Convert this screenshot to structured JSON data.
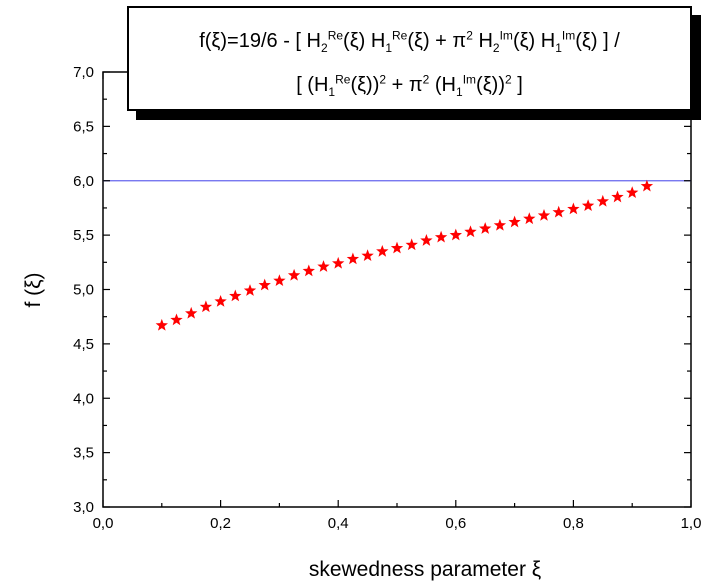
{
  "chart_data": {
    "type": "scatter",
    "xlabel": "skewedness parameter ξ",
    "ylabel": "f (ξ)",
    "xlim": [
      0.0,
      1.0
    ],
    "ylim": [
      3.0,
      7.0
    ],
    "x_ticks": [
      "0,0",
      "0,2",
      "0,4",
      "0,6",
      "0,8",
      "1,0"
    ],
    "y_ticks": [
      "3,0",
      "3,5",
      "4,0",
      "4,5",
      "5,0",
      "5,5",
      "6,0",
      "6,5",
      "7,0"
    ],
    "reference_line": {
      "y": 6.0,
      "color": "#6666ee"
    },
    "marker": "star",
    "marker_color": "#ff0000",
    "series": [
      {
        "x": [
          0.1,
          0.125,
          0.15,
          0.175,
          0.2,
          0.225,
          0.25,
          0.275,
          0.3,
          0.325,
          0.35,
          0.375,
          0.4,
          0.425,
          0.45,
          0.475,
          0.5,
          0.525,
          0.55,
          0.575,
          0.6,
          0.625,
          0.65,
          0.675,
          0.7,
          0.725,
          0.75,
          0.775,
          0.8,
          0.825,
          0.85,
          0.875,
          0.9,
          0.925
        ],
        "y": [
          4.67,
          4.72,
          4.78,
          4.84,
          4.89,
          4.94,
          4.99,
          5.04,
          5.08,
          5.13,
          5.17,
          5.21,
          5.24,
          5.28,
          5.31,
          5.35,
          5.38,
          5.41,
          5.45,
          5.48,
          5.5,
          5.53,
          5.56,
          5.59,
          5.62,
          5.65,
          5.68,
          5.71,
          5.74,
          5.77,
          5.81,
          5.85,
          5.89,
          5.95
        ]
      }
    ]
  },
  "formula": {
    "f": "f(ξ)=19/6 - [ H",
    "s2": "2",
    "re": "Re",
    "xi": "(ξ) H",
    "s1": "1",
    "plus_pi": "(ξ) + π",
    "pow2": "2",
    "h": " H",
    "im": "Im",
    "end1": "(ξ) ] /",
    "l2a": "[ (H",
    "xi2": "(ξ))",
    "plus2": " + π",
    "l2b": " (H",
    "end2": "(ξ))",
    "close": " ]"
  }
}
